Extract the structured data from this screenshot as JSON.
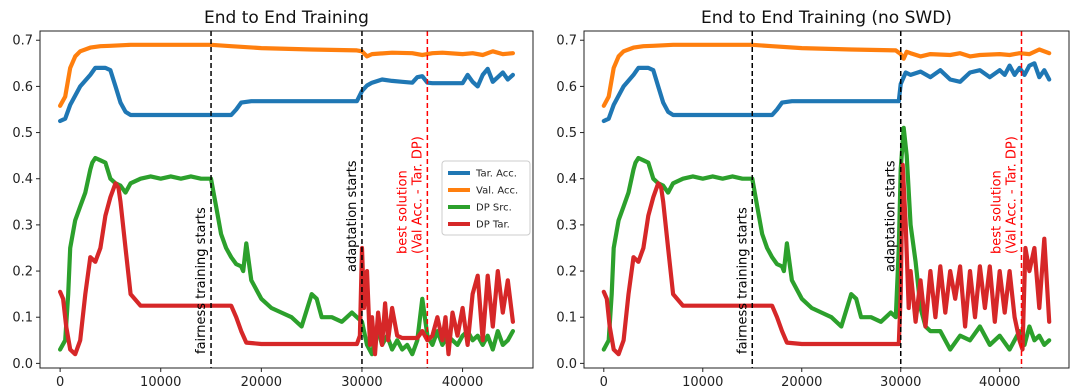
{
  "chart_data": [
    {
      "type": "line",
      "title": "End to End Training",
      "xlabel": "",
      "ylabel": "",
      "xlim": [
        -2000,
        47000
      ],
      "ylim": [
        -0.01,
        0.72
      ],
      "xticks": [
        0,
        10000,
        20000,
        30000,
        40000
      ],
      "yticks": [
        0.0,
        0.1,
        0.2,
        0.3,
        0.4,
        0.5,
        0.6,
        0.7
      ],
      "grid": false,
      "legend": {
        "placement": "center-right",
        "entries": [
          "Tar. Acc.",
          "Val. Acc.",
          "DP Src.",
          "DP Tar."
        ]
      },
      "vlines": [
        {
          "x": 15000,
          "label": "fairness training starts",
          "color": "#000000",
          "style": "dashed"
        },
        {
          "x": 30000,
          "label": "adaptation starts",
          "color": "#000000",
          "style": "dashed"
        },
        {
          "x": 36500,
          "label": "best solution\n(Val Acc. - Tar. DP)",
          "color": "#ff0000",
          "style": "dashed"
        }
      ],
      "series": [
        {
          "name": "Tar. Acc.",
          "color": "#1f77b4",
          "x": [
            0,
            500,
            1000,
            2000,
            3000,
            3500,
            4500,
            5000,
            5500,
            6000,
            6500,
            7000,
            8000,
            10000,
            15000,
            17000,
            17500,
            18000,
            19000,
            20000,
            25000,
            29500,
            30000,
            30500,
            31000,
            32000,
            33000,
            34000,
            35000,
            35500,
            36000,
            36500,
            37000,
            38000,
            40000,
            40500,
            41000,
            41500,
            42000,
            42500,
            43000,
            43500,
            44000,
            44500,
            45000
          ],
          "y": [
            0.525,
            0.53,
            0.56,
            0.6,
            0.625,
            0.64,
            0.64,
            0.635,
            0.6,
            0.565,
            0.545,
            0.538,
            0.538,
            0.538,
            0.538,
            0.538,
            0.55,
            0.565,
            0.568,
            0.568,
            0.568,
            0.568,
            0.59,
            0.602,
            0.608,
            0.615,
            0.612,
            0.61,
            0.608,
            0.62,
            0.622,
            0.608,
            0.607,
            0.607,
            0.607,
            0.625,
            0.61,
            0.6,
            0.625,
            0.638,
            0.61,
            0.62,
            0.63,
            0.615,
            0.625
          ]
        },
        {
          "name": "Val. Acc.",
          "color": "#ff7f0e",
          "x": [
            0,
            500,
            1000,
            1500,
            2000,
            3000,
            4000,
            5000,
            7000,
            10000,
            15000,
            17000,
            20000,
            25000,
            29500,
            30000,
            30500,
            31000,
            33000,
            35000,
            36000,
            37000,
            38000,
            40000,
            41000,
            42000,
            43000,
            44000,
            45000
          ],
          "y": [
            0.558,
            0.578,
            0.64,
            0.665,
            0.676,
            0.684,
            0.687,
            0.688,
            0.69,
            0.69,
            0.69,
            0.687,
            0.683,
            0.68,
            0.678,
            0.676,
            0.665,
            0.67,
            0.673,
            0.672,
            0.668,
            0.672,
            0.673,
            0.67,
            0.672,
            0.668,
            0.676,
            0.67,
            0.672
          ]
        },
        {
          "name": "DP Src.",
          "color": "#2ca02c",
          "x": [
            0,
            500,
            800,
            1000,
            1500,
            2000,
            2500,
            3000,
            3200,
            3500,
            4000,
            4500,
            5000,
            5500,
            6000,
            6500,
            7000,
            8000,
            9000,
            10000,
            11000,
            12000,
            13000,
            14000,
            15000,
            15500,
            16000,
            16500,
            17000,
            17500,
            18000,
            18200,
            18500,
            19000,
            20000,
            21000,
            22000,
            23000,
            24000,
            25000,
            25500,
            26000,
            27000,
            28000,
            29000,
            29500,
            30000,
            30500,
            31000,
            31500,
            32000,
            32500,
            33000,
            33500,
            34000,
            34500,
            35000,
            35500,
            36000,
            36500,
            37000,
            37500,
            38000,
            38500,
            39000,
            39500,
            40000,
            40500,
            41000,
            41500,
            42000,
            42500,
            43000,
            43500,
            44000,
            44500,
            45000
          ],
          "y": [
            0.03,
            0.05,
            0.15,
            0.25,
            0.31,
            0.34,
            0.37,
            0.42,
            0.435,
            0.445,
            0.44,
            0.435,
            0.4,
            0.39,
            0.385,
            0.37,
            0.39,
            0.4,
            0.405,
            0.4,
            0.405,
            0.4,
            0.405,
            0.4,
            0.4,
            0.34,
            0.28,
            0.25,
            0.23,
            0.215,
            0.21,
            0.2,
            0.26,
            0.18,
            0.14,
            0.12,
            0.11,
            0.1,
            0.08,
            0.15,
            0.14,
            0.1,
            0.1,
            0.09,
            0.11,
            0.1,
            0.09,
            0.04,
            0.02,
            0.08,
            0.04,
            0.06,
            0.03,
            0.05,
            0.03,
            0.04,
            0.02,
            0.05,
            0.14,
            0.06,
            0.04,
            0.07,
            0.04,
            0.06,
            0.05,
            0.04,
            0.06,
            0.07,
            0.05,
            0.06,
            0.04,
            0.06,
            0.03,
            0.07,
            0.04,
            0.05,
            0.07
          ]
        },
        {
          "name": "DP Tar.",
          "color": "#d62728",
          "x": [
            0,
            300,
            600,
            1000,
            1500,
            2000,
            2500,
            3000,
            3500,
            4000,
            4500,
            5000,
            5500,
            5800,
            6000,
            6500,
            7000,
            8000,
            10000,
            12000,
            15000,
            17000,
            17500,
            18000,
            18500,
            20000,
            25000,
            29500,
            29800,
            30000,
            30200,
            30500,
            30800,
            31000,
            31300,
            31600,
            32000,
            32300,
            32600,
            33000,
            33500,
            34000,
            35000,
            35500,
            36000,
            36500,
            37000,
            37500,
            38000,
            38300,
            38600,
            39000,
            39500,
            40000,
            40500,
            41000,
            41500,
            42000,
            42500,
            43000,
            43500,
            44000,
            44500,
            45000
          ],
          "y": [
            0.155,
            0.14,
            0.08,
            0.03,
            0.02,
            0.05,
            0.15,
            0.23,
            0.22,
            0.25,
            0.32,
            0.36,
            0.39,
            0.38,
            0.35,
            0.25,
            0.15,
            0.125,
            0.125,
            0.125,
            0.125,
            0.125,
            0.1,
            0.07,
            0.045,
            0.042,
            0.042,
            0.042,
            0.06,
            0.25,
            0.12,
            0.2,
            0.04,
            0.1,
            0.02,
            0.11,
            0.04,
            0.13,
            0.05,
            0.12,
            0.06,
            0.055,
            0.055,
            0.055,
            0.07,
            0.05,
            0.06,
            0.1,
            0.05,
            0.1,
            0.02,
            0.11,
            0.06,
            0.12,
            0.04,
            0.15,
            0.19,
            0.05,
            0.19,
            0.08,
            0.2,
            0.11,
            0.18,
            0.09
          ]
        }
      ]
    },
    {
      "type": "line",
      "title": "End to End Training (no SWD)",
      "xlabel": "",
      "ylabel": "",
      "xlim": [
        -2000,
        47000
      ],
      "ylim": [
        -0.01,
        0.72
      ],
      "xticks": [
        0,
        10000,
        20000,
        30000,
        40000
      ],
      "yticks": [
        0.0,
        0.1,
        0.2,
        0.3,
        0.4,
        0.5,
        0.6,
        0.7
      ],
      "grid": false,
      "legend": null,
      "vlines": [
        {
          "x": 15000,
          "label": "fairness training starts",
          "color": "#000000",
          "style": "dashed"
        },
        {
          "x": 30000,
          "label": "adaptation starts",
          "color": "#000000",
          "style": "dashed"
        },
        {
          "x": 42200,
          "label": "best solution\n(Val Acc. - Tar. DP)",
          "color": "#ff0000",
          "style": "dashed"
        }
      ],
      "series": [
        {
          "name": "Tar. Acc.",
          "color": "#1f77b4",
          "x": [
            0,
            500,
            1000,
            2000,
            3000,
            3500,
            4500,
            5000,
            5500,
            6000,
            6500,
            7000,
            8000,
            10000,
            15000,
            17000,
            17500,
            18000,
            19000,
            20000,
            25000,
            29800,
            30000,
            30500,
            31000,
            32000,
            33000,
            34000,
            35000,
            36000,
            37000,
            38000,
            39000,
            40000,
            40500,
            41000,
            41500,
            42000,
            42500,
            43000,
            43500,
            44000,
            44500,
            45000
          ],
          "y": [
            0.525,
            0.53,
            0.56,
            0.6,
            0.625,
            0.64,
            0.64,
            0.635,
            0.6,
            0.565,
            0.545,
            0.538,
            0.538,
            0.538,
            0.538,
            0.538,
            0.55,
            0.565,
            0.568,
            0.568,
            0.568,
            0.568,
            0.605,
            0.63,
            0.625,
            0.632,
            0.62,
            0.635,
            0.615,
            0.61,
            0.63,
            0.635,
            0.62,
            0.635,
            0.625,
            0.645,
            0.625,
            0.64,
            0.625,
            0.645,
            0.65,
            0.62,
            0.635,
            0.615
          ]
        },
        {
          "name": "Val. Acc.",
          "color": "#ff7f0e",
          "x": [
            0,
            500,
            1000,
            1500,
            2000,
            3000,
            4000,
            5000,
            7000,
            10000,
            15000,
            17000,
            20000,
            25000,
            29500,
            30000,
            30300,
            30600,
            31000,
            32000,
            33000,
            35000,
            36000,
            37000,
            38000,
            40000,
            41000,
            42000,
            43000,
            44000,
            45000
          ],
          "y": [
            0.558,
            0.578,
            0.64,
            0.665,
            0.676,
            0.684,
            0.687,
            0.688,
            0.69,
            0.69,
            0.69,
            0.687,
            0.683,
            0.68,
            0.678,
            0.67,
            0.66,
            0.675,
            0.672,
            0.665,
            0.67,
            0.668,
            0.672,
            0.665,
            0.668,
            0.67,
            0.668,
            0.672,
            0.67,
            0.68,
            0.672
          ]
        },
        {
          "name": "DP Src.",
          "color": "#2ca02c",
          "x": [
            0,
            500,
            800,
            1000,
            1500,
            2000,
            2500,
            3000,
            3200,
            3500,
            4000,
            4500,
            5000,
            5500,
            6000,
            6500,
            7000,
            8000,
            9000,
            10000,
            11000,
            12000,
            13000,
            14000,
            15000,
            15500,
            16000,
            16500,
            17000,
            17500,
            18000,
            18200,
            18500,
            19000,
            20000,
            21000,
            22000,
            23000,
            24000,
            25000,
            25500,
            26000,
            27000,
            28000,
            29000,
            29500,
            29800,
            30000,
            30300,
            30600,
            31000,
            31500,
            32000,
            32500,
            33000,
            34000,
            35000,
            36000,
            37000,
            38000,
            39000,
            40000,
            41000,
            41500,
            42000,
            42500,
            43000,
            43500,
            44000,
            44500,
            45000
          ],
          "y": [
            0.03,
            0.05,
            0.15,
            0.25,
            0.31,
            0.34,
            0.37,
            0.42,
            0.435,
            0.445,
            0.44,
            0.435,
            0.4,
            0.39,
            0.385,
            0.37,
            0.39,
            0.4,
            0.405,
            0.4,
            0.405,
            0.4,
            0.405,
            0.4,
            0.4,
            0.34,
            0.28,
            0.25,
            0.23,
            0.215,
            0.21,
            0.2,
            0.26,
            0.18,
            0.14,
            0.12,
            0.11,
            0.1,
            0.08,
            0.15,
            0.14,
            0.1,
            0.1,
            0.09,
            0.11,
            0.1,
            0.25,
            0.42,
            0.51,
            0.45,
            0.3,
            0.22,
            0.12,
            0.08,
            0.07,
            0.07,
            0.03,
            0.06,
            0.05,
            0.08,
            0.04,
            0.06,
            0.03,
            0.05,
            0.07,
            0.04,
            0.08,
            0.05,
            0.06,
            0.04,
            0.05
          ]
        },
        {
          "name": "DP Tar.",
          "color": "#d62728",
          "x": [
            0,
            300,
            600,
            1000,
            1500,
            2000,
            2500,
            3000,
            3500,
            4000,
            4500,
            5000,
            5500,
            5800,
            6000,
            6500,
            7000,
            8000,
            10000,
            12000,
            15000,
            17000,
            17500,
            18000,
            18500,
            20000,
            25000,
            29800,
            30000,
            30200,
            30500,
            30800,
            31000,
            31500,
            32000,
            32500,
            33000,
            33500,
            34000,
            34500,
            35000,
            35500,
            36000,
            36500,
            37000,
            37500,
            38000,
            38500,
            39000,
            39500,
            40000,
            40500,
            41000,
            41500,
            42000,
            42300,
            42600,
            43000,
            43500,
            44000,
            44500,
            45000
          ],
          "y": [
            0.155,
            0.14,
            0.08,
            0.03,
            0.02,
            0.05,
            0.15,
            0.23,
            0.22,
            0.25,
            0.32,
            0.36,
            0.39,
            0.38,
            0.35,
            0.25,
            0.15,
            0.125,
            0.125,
            0.125,
            0.125,
            0.125,
            0.1,
            0.07,
            0.045,
            0.042,
            0.042,
            0.042,
            0.15,
            0.43,
            0.3,
            0.12,
            0.2,
            0.09,
            0.18,
            0.08,
            0.2,
            0.1,
            0.21,
            0.11,
            0.2,
            0.14,
            0.21,
            0.08,
            0.2,
            0.1,
            0.21,
            0.12,
            0.21,
            0.09,
            0.2,
            0.11,
            0.2,
            0.1,
            0.05,
            0.03,
            0.25,
            0.2,
            0.25,
            0.12,
            0.27,
            0.09
          ]
        }
      ]
    }
  ]
}
